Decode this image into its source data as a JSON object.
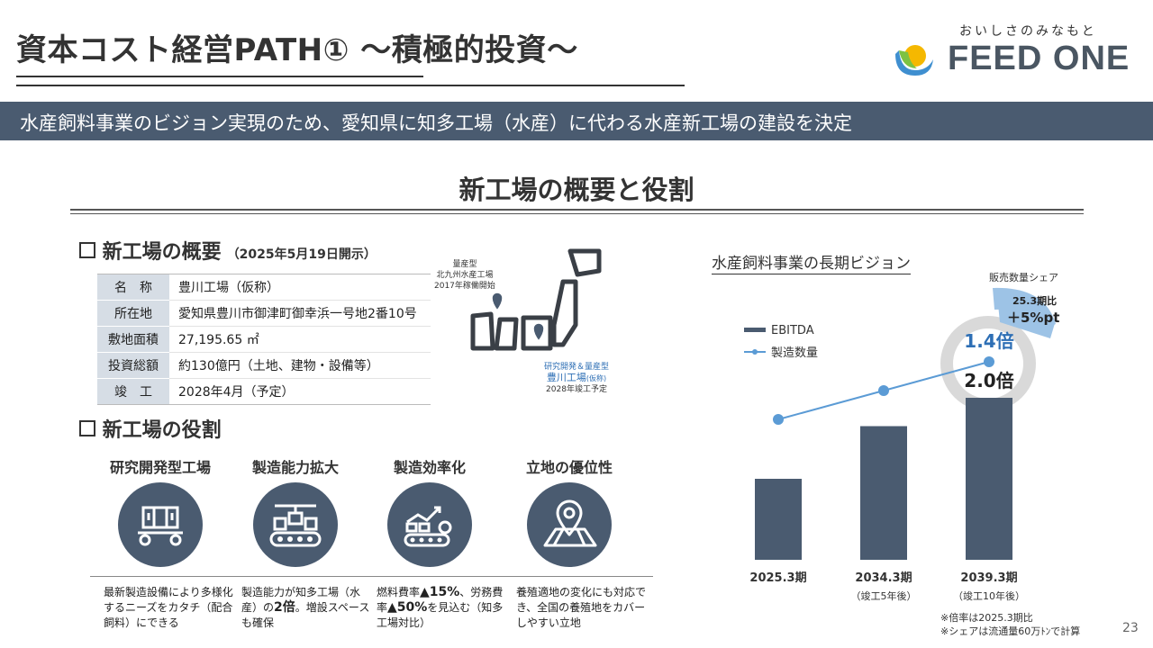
{
  "header": {
    "title": "資本コスト経営PATH① ～積極的投資～",
    "logo_tagline": "おいしさのみなもと",
    "logo_text": "FEED ONE"
  },
  "banner": "水産飼料事業のビジョン実現のため、愛知県に知多工場（水産）に代わる水産新工場の建設を決定",
  "section_heading": "新工場の概要と役割",
  "overview": {
    "heading": "新工場の概要",
    "date": "（2025年5月19日開示）",
    "rows": [
      {
        "key": "名　称",
        "value": "豊川工場（仮称）"
      },
      {
        "key": "所在地",
        "value": "愛知県豊川市御津町御幸浜一号地2番10号"
      },
      {
        "key": "敷地面積",
        "value": "27,195.65 ㎡"
      },
      {
        "key": "投資総額",
        "value": "約130億円（土地、建物・設備等）"
      },
      {
        "key": "竣　工",
        "value": "2028年4月（予定）"
      }
    ]
  },
  "map": {
    "label1_line1": "量産型",
    "label1_line2": "北九州水産工場",
    "label1_line3": "2017年稼働開始",
    "label2_line1": "研究開発＆量産型",
    "label2_line2": "豊川工場",
    "label2_line2_sub": "(仮称)",
    "label2_line3": "2028年竣工予定"
  },
  "roles": {
    "heading": "新工場の役割",
    "items": [
      {
        "title": "研究開発型工場",
        "icon": "lab-equipment-icon",
        "desc": "最新製造設備により多様化するニーズをカタチ（配合飼料）にできる"
      },
      {
        "title": "製造能力拡大",
        "icon": "conveyor-crane-icon",
        "desc_pre": "製造能力が知多工場（水産）の",
        "desc_bold": "2倍",
        "desc_post": "。増設スペースも確保"
      },
      {
        "title": "製造効率化",
        "icon": "efficiency-gear-icon",
        "desc_pre": "燃料費率",
        "desc_bold1": "▲15%",
        "desc_mid": "、労務費率",
        "desc_bold2": "▲50%",
        "desc_post": "を見込む（知多工場対比）"
      },
      {
        "title": "立地の優位性",
        "icon": "map-pin-icon",
        "desc": "養殖適地の変化にも対応でき、全国の養殖地をカバーしやすい立地"
      }
    ]
  },
  "vision": {
    "title": "水産飼料事業の長期ビジョン",
    "share_label": "販売数量シェア",
    "share_badge_line1": "25.3期比",
    "share_badge_line2": "＋5%pt",
    "footnote1": "※倍率は2025.3期比",
    "footnote2": "※シェアは流通量60万ﾄﾝで計算"
  },
  "chart_data": {
    "type": "bar",
    "categories": [
      "2025.3期",
      "2034.3期",
      "2039.3期"
    ],
    "category_sub": [
      "",
      "（竣工5年後）",
      "（竣工10年後）"
    ],
    "series": [
      {
        "name": "EBITDA",
        "type": "bar",
        "values": [
          1.0,
          1.65,
          2.0
        ],
        "color": "#4a5b70"
      },
      {
        "name": "製造数量",
        "type": "line",
        "values": [
          1.0,
          1.2,
          1.4
        ],
        "color": "#5b9bd5"
      }
    ],
    "data_labels": {
      "EBITDA_last": "2.0倍",
      "製造数量_last": "1.4倍"
    },
    "legend_position": "top-left"
  },
  "page_number": "23",
  "colors": {
    "primary": "#4a5b70",
    "accent": "#5b9bd5",
    "badge": "#9dc3e6",
    "ring": "#d9d9d9"
  }
}
